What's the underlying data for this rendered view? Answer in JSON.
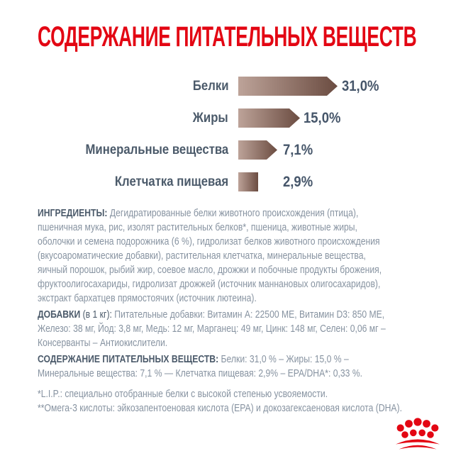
{
  "title": "СОДЕРЖАНИЕ ПИТАТЕЛЬНЫХ ВЕЩЕСТВ",
  "chart_data": {
    "type": "bar",
    "orientation": "horizontal",
    "categories": [
      "Белки",
      "Жиры",
      "Минеральные вещества",
      "Клетчатка пищевая"
    ],
    "values": [
      31.0,
      15.0,
      7.1,
      2.9
    ],
    "value_labels": [
      "31,0%",
      "15,0%",
      "7,1%",
      "2,9%"
    ],
    "xlim": [
      0,
      33
    ],
    "grid": false,
    "legend": "none",
    "bar_gradient": [
      "#bda399",
      "#6b4c41"
    ],
    "label_color": "#4b5a6a"
  },
  "sections": {
    "ingredients": {
      "label": "ИНГРЕДИЕНТЫ:",
      "text": "Дегидратированные белки животного происхождения (птица),\nпшеничная мука, рис, изолят растительных белков*, пшеница, животные жиры,\nоболочки и семена подорожника (6 %), гидролизат белков животного происхождения\n(вкусоароматические добавки), растительная клетчатка, минеральные вещества,\nяичный порошок, рыбий жир, соевое масло, дрожжи и побочные продукты брожения,\nфруктоолигосахариды, гидролизат дрожжей (источник маннановых олигосахаридов),\nэкстракт бархатцев прямостоячих (источник лютеина)."
    },
    "additives": {
      "label": "ДОБАВКИ",
      "label_note": "(в 1 кг):",
      "text": "Питательные добавки: Витамин A: 22500 МЕ, Витамин D3: 850 МЕ,\nЖелезо: 38 мг, Йод: 3,8 мг, Медь: 12 мг, Марганец: 49 мг, Цинк: 148 мг, Селен: 0,06 мг –\nКонсерванты – Антиокислители."
    },
    "analysis": {
      "label": "СОДЕРЖАНИЕ ПИТАТЕЛЬНЫХ ВЕЩЕСТВ:",
      "text": "Белки: 31,0 % – Жиры: 15,0 % –\nМинеральные вещества: 7,1 % — Клетчатка пищевая: 2,9% – EPA/DHA*: 0,33 %."
    },
    "footnotes": {
      "line1": "*L.I.P.: специально отобранные белки с высокой степенью усвояемости.",
      "line2": "**Омега-3 кислоты: эйкозапентоеновая кислота (EPA) и докозагексаеновая кислота (DHA)."
    }
  },
  "logo": {
    "name": "royal-canin-crown",
    "color": "#e30613"
  }
}
